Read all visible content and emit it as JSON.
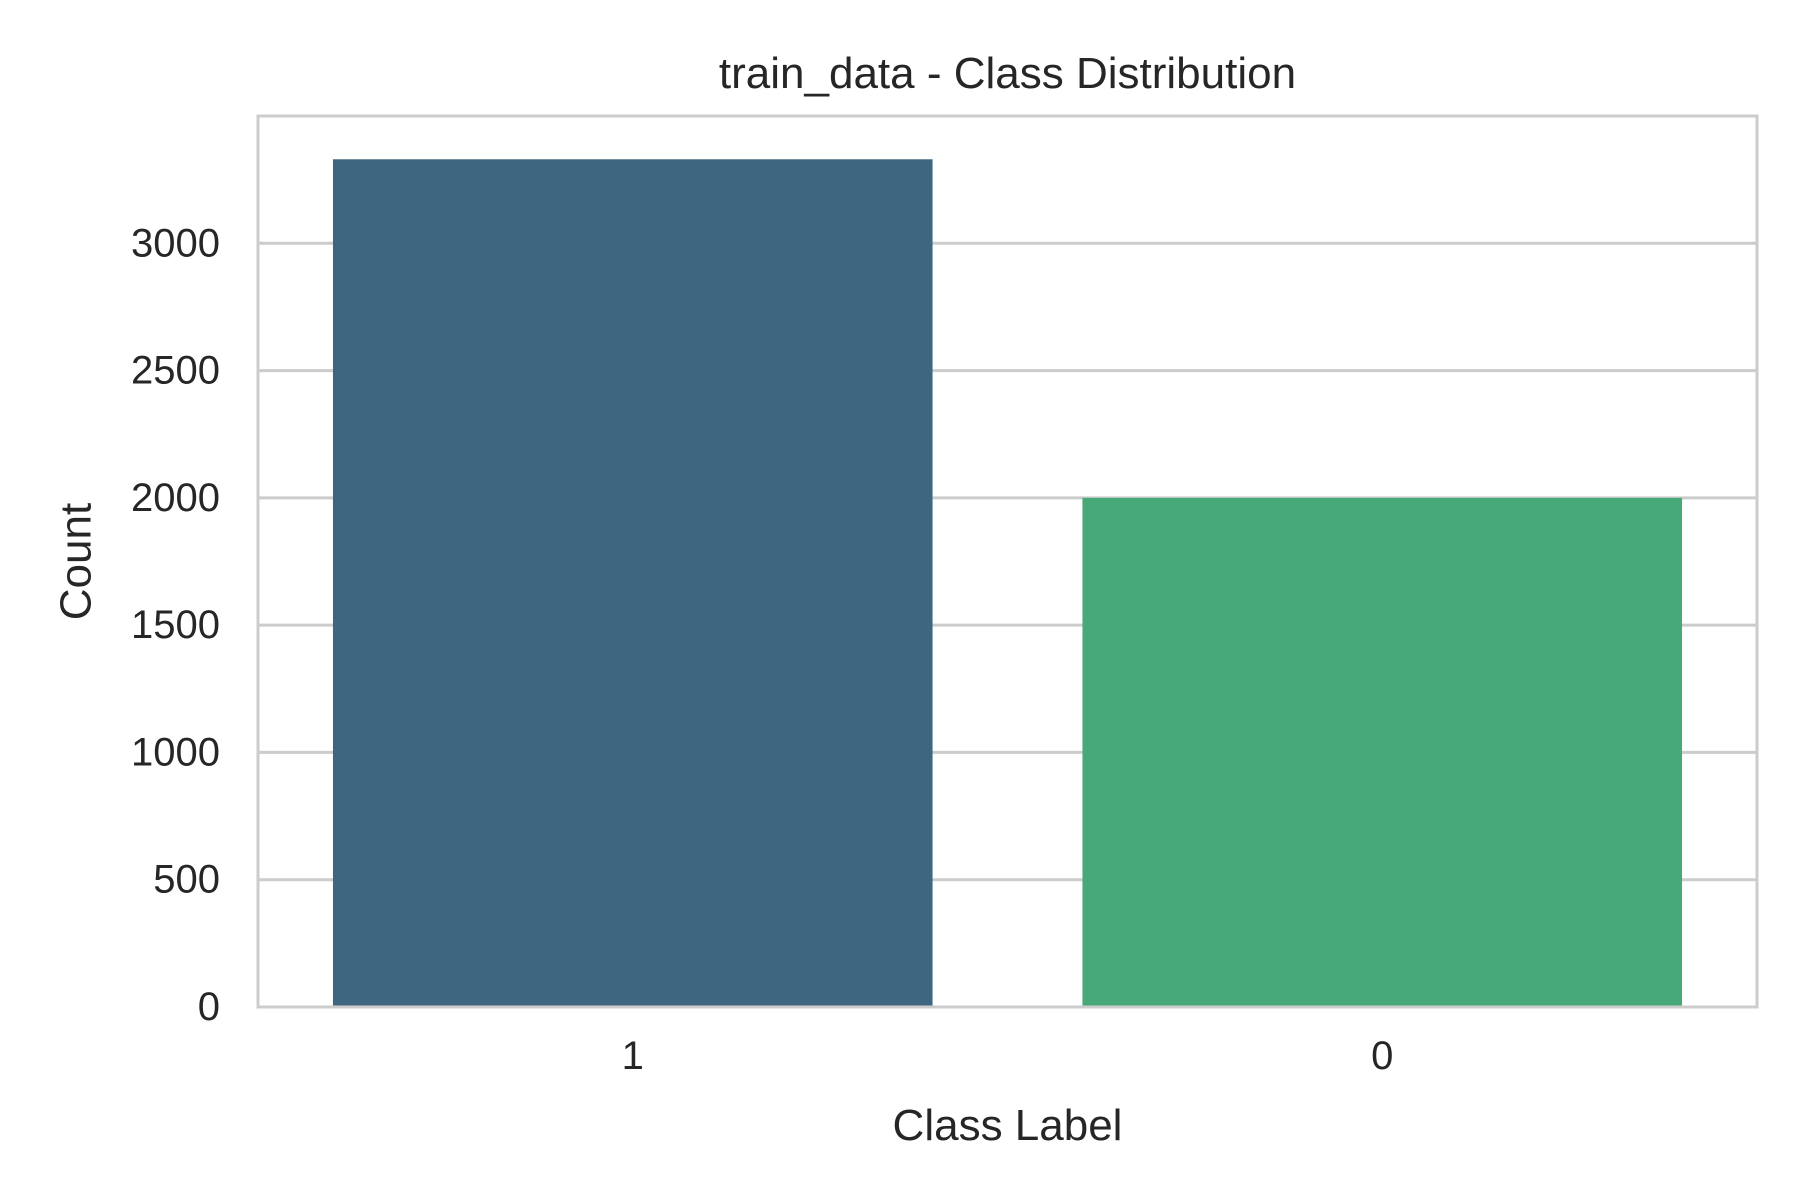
{
  "chart_data": {
    "type": "bar",
    "title": "train_data - Class Distribution",
    "xlabel": "Class Label",
    "ylabel": "Count",
    "categories": [
      "1",
      "0"
    ],
    "values": [
      3330,
      2000
    ],
    "ylim": [
      0,
      3500
    ],
    "yticks": [
      0,
      500,
      1000,
      1500,
      2000,
      2500,
      3000
    ],
    "grid": true,
    "colors": [
      "#3f6680",
      "#47a878"
    ],
    "gridColor": "#cccccc",
    "spineColor": "#cccccc"
  }
}
